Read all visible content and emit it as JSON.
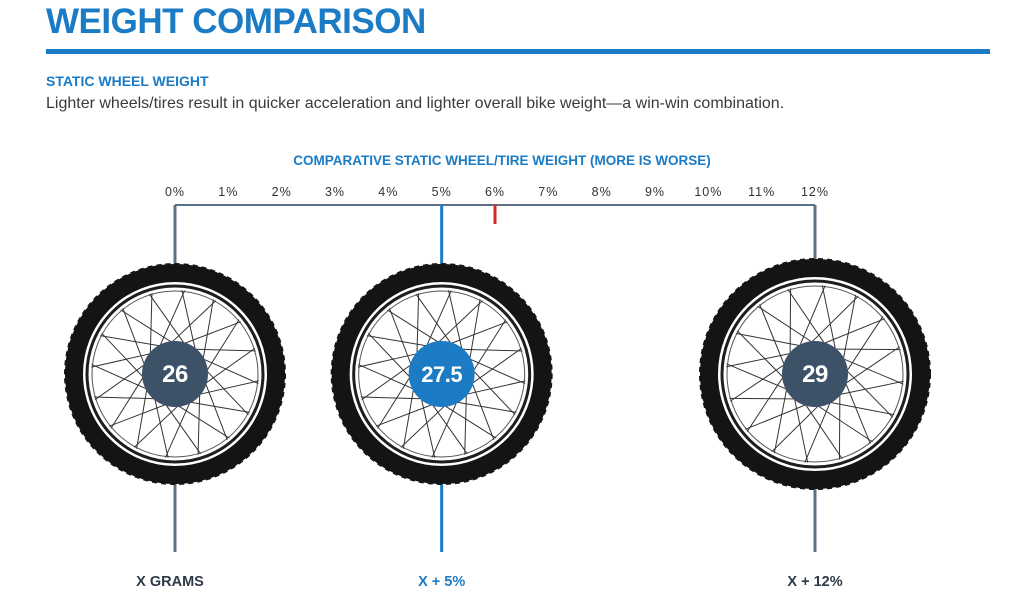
{
  "header": {
    "title": "WEIGHT COMPARISON",
    "subtitle": "STATIC WHEEL WEIGHT",
    "description": "Lighter wheels/tires result in quicker acceleration and lighter overall bike weight—a win-win combination."
  },
  "colors": {
    "accent": "#1b7bc4",
    "rule": "#1b7bc4",
    "axis": "#5b7085",
    "hub_dark": "#3d5167",
    "hub_blue": "#1b7bc4",
    "marker": "#d62828",
    "tire": "#141414",
    "text": "#3a3a3a"
  },
  "chart_data": {
    "type": "scatter",
    "title": "COMPARATIVE STATIC WHEEL/TIRE WEIGHT (MORE IS WORSE)",
    "xlabel": "",
    "ylabel": "",
    "ticks": [
      "0%",
      "1%",
      "2%",
      "3%",
      "4%",
      "5%",
      "6%",
      "7%",
      "8%",
      "9%",
      "10%",
      "11%",
      "12%"
    ],
    "xlim": [
      0,
      12
    ],
    "marker_value": 6,
    "series": [
      {
        "name": "26",
        "value": 0,
        "label": "X GRAMS",
        "highlight": false
      },
      {
        "name": "27.5",
        "value": 5,
        "label": "X + 5%",
        "highlight": true
      },
      {
        "name": "29",
        "value": 12,
        "label": "X + 12%",
        "highlight": false
      }
    ]
  }
}
